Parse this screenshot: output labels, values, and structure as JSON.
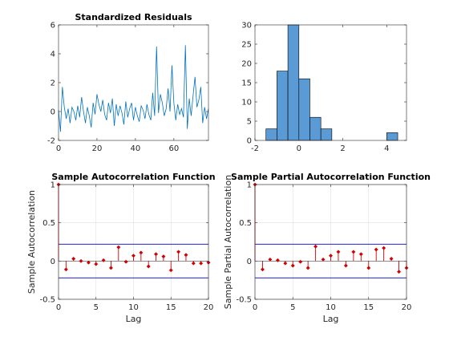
{
  "colors": {
    "line": "#0072bd",
    "bar_fill": "#5b9bd5",
    "bar_edge": "#000000",
    "stem": "#d40000",
    "bound": "#0000cd",
    "axis": "#262626",
    "grid": "#dfdfdf"
  },
  "chart_data": [
    {
      "type": "line",
      "title": "Standardized Residuals",
      "xlabel": "",
      "ylabel": "",
      "xlim": [
        0,
        78
      ],
      "ylim": [
        -2,
        6
      ],
      "xticks": [
        "0",
        "20",
        "40",
        "60"
      ],
      "yticks": [
        "-2",
        "0",
        "2",
        "4",
        "6"
      ],
      "grid": false,
      "x": [
        0,
        1,
        2,
        3,
        4,
        5,
        6,
        7,
        8,
        9,
        10,
        11,
        12,
        13,
        14,
        15,
        16,
        17,
        18,
        19,
        20,
        21,
        22,
        23,
        24,
        25,
        26,
        27,
        28,
        29,
        30,
        31,
        32,
        33,
        34,
        35,
        36,
        37,
        38,
        39,
        40,
        41,
        42,
        43,
        44,
        45,
        46,
        47,
        48,
        49,
        50,
        51,
        52,
        53,
        54,
        55,
        56,
        57,
        58,
        59,
        60,
        61,
        62,
        63,
        64,
        65,
        66,
        67,
        68,
        69,
        70,
        71,
        72,
        73,
        74,
        75,
        76,
        77,
        78
      ],
      "values": [
        0.1,
        -1.4,
        1.7,
        0.3,
        -0.5,
        0.2,
        -0.8,
        0.3,
        0.0,
        -0.6,
        0.4,
        -0.4,
        1.0,
        0.0,
        -0.8,
        0.3,
        -0.3,
        -1.1,
        0.6,
        -0.2,
        1.2,
        0.5,
        0.0,
        0.8,
        -0.2,
        -0.6,
        0.6,
        -0.1,
        0.9,
        -1.0,
        0.5,
        -0.3,
        0.4,
        -0.1,
        -0.9,
        0.7,
        -0.4,
        0.2,
        0.6,
        -0.6,
        0.3,
        -0.3,
        -0.7,
        0.4,
        0.1,
        -0.5,
        0.5,
        -0.2,
        -0.6,
        1.3,
        -0.3,
        4.5,
        -0.1,
        1.2,
        0.6,
        -0.3,
        0.2,
        1.6,
        0.0,
        3.2,
        0.6,
        -0.6,
        0.5,
        -0.2,
        0.2,
        -0.4,
        4.6,
        -1.2,
        0.9,
        -0.3,
        1.1,
        2.4,
        0.3,
        0.8,
        1.7,
        -0.8,
        0.3,
        -0.5,
        0.2
      ]
    },
    {
      "type": "bar",
      "title": "",
      "xlabel": "",
      "ylabel": "",
      "xlim": [
        -2,
        4.9
      ],
      "ylim": [
        0,
        30
      ],
      "xticks": [
        "-2",
        "0",
        "2",
        "4"
      ],
      "yticks": [
        "0",
        "5",
        "10",
        "15",
        "20",
        "25",
        "30"
      ],
      "grid": false,
      "bin_edges": [
        -1.5,
        -1.0,
        -0.5,
        0.0,
        0.5,
        1.0,
        1.5,
        2.0,
        2.5,
        3.0,
        3.5,
        4.0,
        4.5
      ],
      "bin_width": 0.5,
      "values": [
        3,
        18,
        30,
        16,
        6,
        3,
        0,
        0,
        0,
        0,
        0,
        2
      ]
    },
    {
      "type": "stem",
      "title": "Sample Autocorrelation Function",
      "xlabel": "Lag",
      "ylabel": "Sample Autocorrelation",
      "xlim": [
        0,
        20
      ],
      "ylim": [
        -0.5,
        1
      ],
      "xticks": [
        "0",
        "5",
        "10",
        "15",
        "20"
      ],
      "yticks": [
        "-0.5",
        "0",
        "0.5",
        "1"
      ],
      "grid": true,
      "bounds": [
        0.22,
        -0.22
      ],
      "x": [
        0,
        1,
        2,
        3,
        4,
        5,
        6,
        7,
        8,
        9,
        10,
        11,
        12,
        13,
        14,
        15,
        16,
        17,
        18,
        19,
        20
      ],
      "values": [
        1.0,
        -0.11,
        0.03,
        0.0,
        -0.02,
        -0.04,
        0.01,
        -0.09,
        0.18,
        -0.01,
        0.07,
        0.11,
        -0.07,
        0.09,
        0.06,
        -0.12,
        0.12,
        0.08,
        -0.03,
        -0.03,
        -0.02
      ]
    },
    {
      "type": "stem",
      "title": "Sample Partial Autocorrelation Function",
      "xlabel": "Lag",
      "ylabel": "Sample Partial Autocorrelation",
      "xlim": [
        0,
        20
      ],
      "ylim": [
        -0.5,
        1
      ],
      "xticks": [
        "0",
        "5",
        "10",
        "15",
        "20"
      ],
      "yticks": [
        "-0.5",
        "0",
        "0.5",
        "1"
      ],
      "grid": true,
      "bounds": [
        0.22,
        -0.22
      ],
      "x": [
        0,
        1,
        2,
        3,
        4,
        5,
        6,
        7,
        8,
        9,
        10,
        11,
        12,
        13,
        14,
        15,
        16,
        17,
        18,
        19,
        20
      ],
      "values": [
        1.0,
        -0.11,
        0.02,
        0.01,
        -0.03,
        -0.06,
        -0.01,
        -0.09,
        0.19,
        0.02,
        0.07,
        0.12,
        -0.06,
        0.12,
        0.09,
        -0.09,
        0.15,
        0.17,
        0.03,
        -0.14,
        -0.09
      ]
    }
  ]
}
